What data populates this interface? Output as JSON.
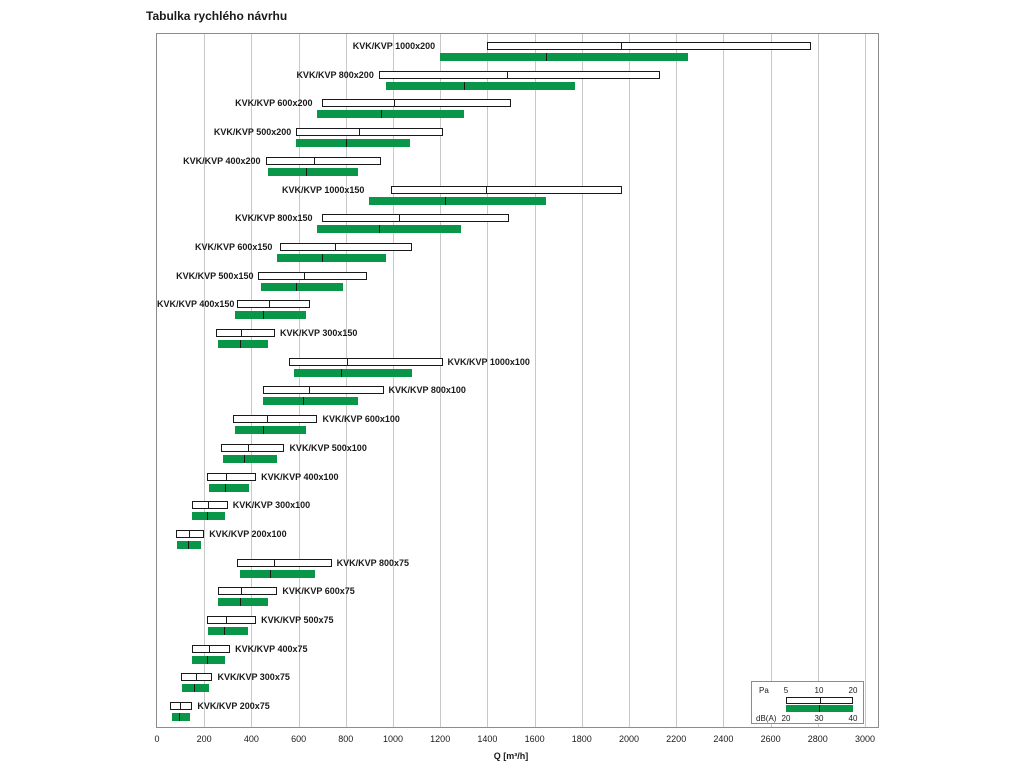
{
  "page_title": "Tabulka rychlého návrhu",
  "chart_data": {
    "type": "bar",
    "title": "Tabulka rychlého návrhu",
    "xlabel": "Q [m³/h]",
    "xlim": [
      0,
      3000
    ],
    "x_ticks": [
      0,
      200,
      400,
      600,
      800,
      1000,
      1200,
      1400,
      1600,
      1800,
      2000,
      2200,
      2400,
      2600,
      2800,
      3000
    ],
    "grid": "vertical-gridlines",
    "legend_position": "bottom-right",
    "colors": {
      "bar_green": "#0a9648",
      "bar_white": "#ffffff",
      "grid": "#c8c8c8",
      "border": "#8c8c8c"
    },
    "series": [
      {
        "name": "Pa",
        "style": "white-outlined-bar",
        "values_key": "pa"
      },
      {
        "name": "dB(A)",
        "style": "green-solid-bar",
        "values_key": "db"
      }
    ],
    "legend": {
      "pa_label": "Pa",
      "pa_values": [
        5,
        10,
        20
      ],
      "db_label": "dB(A)",
      "db_values": [
        20,
        30,
        40
      ]
    },
    "rows": [
      {
        "label": "KVK/KVP 1000x200",
        "pa": [
          1400,
          1960,
          2770
        ],
        "db": [
          1200,
          1650,
          2250
        ],
        "label_side": "left"
      },
      {
        "label": "KVK/KVP 800x200",
        "pa": [
          940,
          1480,
          2130
        ],
        "db": [
          970,
          1300,
          1770
        ],
        "label_side": "left"
      },
      {
        "label": "KVK/KVP 600x200",
        "pa": [
          700,
          1000,
          1500
        ],
        "db": [
          680,
          950,
          1300
        ],
        "label_side": "left"
      },
      {
        "label": "KVK/KVP 500x200",
        "pa": [
          590,
          850,
          1210
        ],
        "db": [
          590,
          800,
          1070
        ],
        "label_side": "left"
      },
      {
        "label": "KVK/KVP 400x200",
        "pa": [
          460,
          660,
          950
        ],
        "db": [
          470,
          630,
          850
        ],
        "label_side": "left"
      },
      {
        "label": "KVK/KVP 1000x150",
        "pa": [
          990,
          1390,
          1970
        ],
        "db": [
          900,
          1220,
          1650
        ],
        "label_side": "left"
      },
      {
        "label": "KVK/KVP 800x150",
        "pa": [
          700,
          1020,
          1490
        ],
        "db": [
          680,
          940,
          1290
        ],
        "label_side": "left"
      },
      {
        "label": "KVK/KVP 600x150",
        "pa": [
          520,
          750,
          1080
        ],
        "db": [
          510,
          700,
          970
        ],
        "label_side": "left"
      },
      {
        "label": "KVK/KVP 500x150",
        "pa": [
          430,
          620,
          890
        ],
        "db": [
          440,
          590,
          790
        ],
        "label_side": "left"
      },
      {
        "label": "KVK/KVP 400x150",
        "pa": [
          340,
          470,
          650
        ],
        "db": [
          330,
          450,
          630
        ],
        "label_side": "left"
      },
      {
        "label": "KVK/KVP 300x150",
        "pa": [
          250,
          350,
          500
        ],
        "db": [
          260,
          350,
          470
        ],
        "label_side": "right"
      },
      {
        "label": "KVK/KVP 1000x100",
        "pa": [
          560,
          800,
          1210
        ],
        "db": [
          580,
          780,
          1080
        ],
        "label_side": "right"
      },
      {
        "label": "KVK/KVP 800x100",
        "pa": [
          450,
          640,
          960
        ],
        "db": [
          450,
          620,
          850
        ],
        "label_side": "right"
      },
      {
        "label": "KVK/KVP 600x100",
        "pa": [
          320,
          460,
          680
        ],
        "db": [
          330,
          450,
          630
        ],
        "label_side": "right"
      },
      {
        "label": "KVK/KVP 500x100",
        "pa": [
          270,
          380,
          540
        ],
        "db": [
          280,
          370,
          510
        ],
        "label_side": "right"
      },
      {
        "label": "KVK/KVP 400x100",
        "pa": [
          210,
          290,
          420
        ],
        "db": [
          220,
          290,
          390
        ],
        "label_side": "right"
      },
      {
        "label": "KVK/KVP 300x100",
        "pa": [
          150,
          210,
          300
        ],
        "db": [
          150,
          210,
          290
        ],
        "label_side": "right"
      },
      {
        "label": "KVK/KVP 200x100",
        "pa": [
          80,
          130,
          200
        ],
        "db": [
          85,
          130,
          185
        ],
        "label_side": "right"
      },
      {
        "label": "KVK/KVP 800x75",
        "pa": [
          340,
          490,
          740
        ],
        "db": [
          350,
          480,
          670
        ],
        "label_side": "right"
      },
      {
        "label": "KVK/KVP 600x75",
        "pa": [
          260,
          350,
          510
        ],
        "db": [
          260,
          350,
          470
        ],
        "label_side": "right"
      },
      {
        "label": "KVK/KVP 500x75",
        "pa": [
          210,
          290,
          420
        ],
        "db": [
          215,
          285,
          385
        ],
        "label_side": "right"
      },
      {
        "label": "KVK/KVP 400x75",
        "pa": [
          150,
          215,
          310
        ],
        "db": [
          150,
          210,
          290
        ],
        "label_side": "right"
      },
      {
        "label": "KVK/KVP 300x75",
        "pa": [
          100,
          160,
          235
        ],
        "db": [
          105,
          155,
          220
        ],
        "label_side": "right"
      },
      {
        "label": "KVK/KVP 200x75",
        "pa": [
          55,
          95,
          150
        ],
        "db": [
          65,
          95,
          140
        ],
        "label_side": "right"
      }
    ]
  }
}
